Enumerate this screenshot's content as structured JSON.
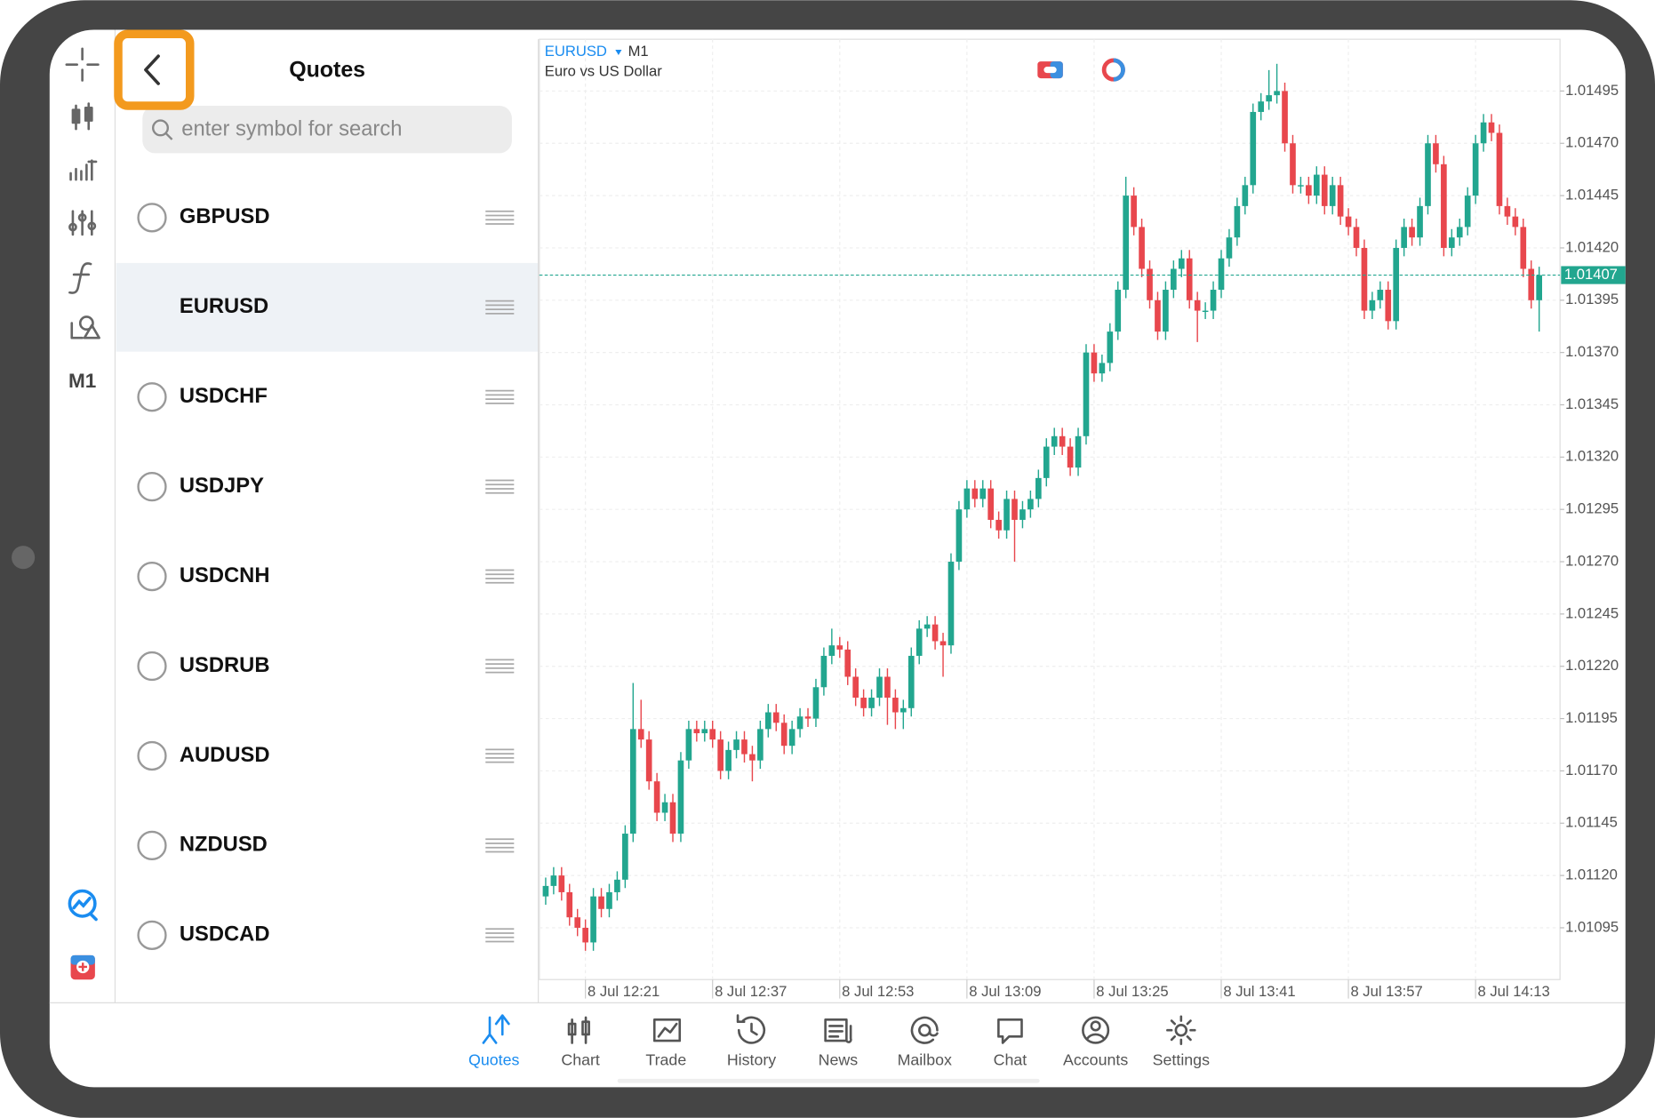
{
  "sidebar": {
    "timeframe": "M1"
  },
  "quotes": {
    "title": "Quotes",
    "search_placeholder": "enter symbol for search",
    "symbols": [
      {
        "name": "GBPUSD",
        "selected": false
      },
      {
        "name": "EURUSD",
        "selected": true
      },
      {
        "name": "USDCHF",
        "selected": false
      },
      {
        "name": "USDJPY",
        "selected": false
      },
      {
        "name": "USDCNH",
        "selected": false
      },
      {
        "name": "USDRUB",
        "selected": false
      },
      {
        "name": "AUDUSD",
        "selected": false
      },
      {
        "name": "NZDUSD",
        "selected": false
      },
      {
        "name": "USDCAD",
        "selected": false
      }
    ]
  },
  "chart": {
    "type": "candlestick",
    "symbol": "EURUSD",
    "timeframe": "M1",
    "description": "Euro vs US Dollar",
    "up_color": "#22a68f",
    "down_color": "#e8474d",
    "grid": true,
    "ylim": [
      1.0107,
      1.0152
    ],
    "yticks": [
      1.01095,
      {
        "value": 1.0112,
        "label": "1.01120"
      },
      1.01145,
      {
        "value": 1.0117,
        "label": "1.01170"
      },
      1.01195,
      {
        "value": 1.0122,
        "label": "1.01220"
      },
      1.01245,
      {
        "value": 1.0127,
        "label": "1.01270"
      },
      1.01295,
      {
        "value": 1.0132,
        "label": "1.01320"
      },
      1.01345,
      {
        "value": 1.0137,
        "label": "1.01370"
      },
      1.01395,
      {
        "value": 1.0142,
        "label": "1.01420"
      },
      1.01445,
      {
        "value": 1.0147,
        "label": "1.01470"
      },
      1.01495
    ],
    "xticks": [
      {
        "value": 5,
        "label": "8 Jul 12:21"
      },
      {
        "value": 21,
        "label": "8 Jul 12:37"
      },
      {
        "value": 37,
        "label": "8 Jul 12:53"
      },
      {
        "value": 53,
        "label": "8 Jul 13:09"
      },
      {
        "value": 69,
        "label": "8 Jul 13:25"
      },
      {
        "value": 85,
        "label": "8 Jul 13:41"
      },
      {
        "value": 101,
        "label": "8 Jul 13:57"
      },
      {
        "value": 117,
        "label": "8 Jul 14:13"
      }
    ],
    "ohlc": [
      [
        1.0111,
        1.01119,
        1.01106,
        1.01115
      ],
      [
        1.01115,
        1.01124,
        1.01111,
        1.0112
      ],
      [
        1.0112,
        1.01124,
        1.01108,
        1.01112
      ],
      [
        1.01112,
        1.01116,
        1.01096,
        1.011
      ],
      [
        1.011,
        1.01104,
        1.01091,
        1.01095
      ],
      [
        1.01095,
        1.01099,
        1.01084,
        1.01088
      ],
      [
        1.01088,
        1.01114,
        1.01084,
        1.0111
      ],
      [
        1.0111,
        1.01114,
        1.011,
        1.01104
      ],
      [
        1.01104,
        1.01116,
        1.011,
        1.01112
      ],
      [
        1.01112,
        1.01122,
        1.01108,
        1.01118
      ],
      [
        1.01118,
        1.01144,
        1.01114,
        1.0114
      ],
      [
        1.0114,
        1.01212,
        1.01136,
        1.0119
      ],
      [
        1.0119,
        1.01204,
        1.01181,
        1.01185
      ],
      [
        1.01185,
        1.01189,
        1.01161,
        1.01165
      ],
      [
        1.01165,
        1.01169,
        1.01146,
        1.0115
      ],
      [
        1.0115,
        1.01159,
        1.01146,
        1.01155
      ],
      [
        1.01155,
        1.01159,
        1.01136,
        1.0114
      ],
      [
        1.0114,
        1.01179,
        1.01136,
        1.01175
      ],
      [
        1.01175,
        1.01194,
        1.01171,
        1.0119
      ],
      [
        1.0119,
        1.01194,
        1.01184,
        1.01188
      ],
      [
        1.01188,
        1.01194,
        1.01184,
        1.0119
      ],
      [
        1.0119,
        1.01194,
        1.01181,
        1.01185
      ],
      [
        1.01185,
        1.01189,
        1.01166,
        1.0117
      ],
      [
        1.0117,
        1.01184,
        1.01166,
        1.0118
      ],
      [
        1.0118,
        1.01189,
        1.01176,
        1.01185
      ],
      [
        1.01185,
        1.01189,
        1.01174,
        1.01178
      ],
      [
        1.01178,
        1.01182,
        1.01165,
        1.01175
      ],
      [
        1.01175,
        1.01194,
        1.01171,
        1.0119
      ],
      [
        1.0119,
        1.01202,
        1.01186,
        1.01198
      ],
      [
        1.01198,
        1.01202,
        1.01189,
        1.01193
      ],
      [
        1.01193,
        1.01197,
        1.01178,
        1.01182
      ],
      [
        1.01182,
        1.01194,
        1.01178,
        1.0119
      ],
      [
        1.0119,
        1.012,
        1.01186,
        1.01196
      ],
      [
        1.01196,
        1.012,
        1.01191,
        1.01195
      ],
      [
        1.01195,
        1.01214,
        1.01191,
        1.0121
      ],
      [
        1.0121,
        1.01229,
        1.01206,
        1.01225
      ],
      [
        1.01225,
        1.01238,
        1.01221,
        1.0123
      ],
      [
        1.0123,
        1.01234,
        1.01224,
        1.01228
      ],
      [
        1.01228,
        1.01232,
        1.01211,
        1.01215
      ],
      [
        1.01215,
        1.01219,
        1.01201,
        1.01205
      ],
      [
        1.01205,
        1.01209,
        1.01196,
        1.012
      ],
      [
        1.012,
        1.01209,
        1.01196,
        1.01205
      ],
      [
        1.01205,
        1.01219,
        1.01201,
        1.01215
      ],
      [
        1.01215,
        1.01219,
        1.01192,
        1.01205
      ],
      [
        1.01205,
        1.01209,
        1.0119,
        1.01198
      ],
      [
        1.01198,
        1.01204,
        1.0119,
        1.012
      ],
      [
        1.012,
        1.01229,
        1.01196,
        1.01225
      ],
      [
        1.01225,
        1.01242,
        1.01221,
        1.01238
      ],
      [
        1.01238,
        1.01244,
        1.01234,
        1.0124
      ],
      [
        1.0124,
        1.01244,
        1.01228,
        1.01232
      ],
      [
        1.01232,
        1.01236,
        1.01215,
        1.0123
      ],
      [
        1.0123,
        1.01274,
        1.01226,
        1.0127
      ],
      [
        1.0127,
        1.01299,
        1.01266,
        1.01295
      ],
      [
        1.01295,
        1.01309,
        1.01291,
        1.01305
      ],
      [
        1.01305,
        1.01309,
        1.01296,
        1.013
      ],
      [
        1.013,
        1.01309,
        1.01296,
        1.01305
      ],
      [
        1.01305,
        1.01309,
        1.01286,
        1.0129
      ],
      [
        1.0129,
        1.01294,
        1.01281,
        1.01285
      ],
      [
        1.01285,
        1.01304,
        1.01281,
        1.013
      ],
      [
        1.013,
        1.01304,
        1.0127,
        1.0129
      ],
      [
        1.0129,
        1.01299,
        1.01286,
        1.01295
      ],
      [
        1.01295,
        1.01304,
        1.01291,
        1.013
      ],
      [
        1.013,
        1.01314,
        1.01296,
        1.0131
      ],
      [
        1.0131,
        1.01329,
        1.01306,
        1.01325
      ],
      [
        1.01325,
        1.01334,
        1.01321,
        1.0133
      ],
      [
        1.0133,
        1.01334,
        1.01321,
        1.01325
      ],
      [
        1.01325,
        1.01329,
        1.01311,
        1.01315
      ],
      [
        1.01315,
        1.01334,
        1.01311,
        1.0133
      ],
      [
        1.0133,
        1.01374,
        1.01326,
        1.0137
      ],
      [
        1.0137,
        1.01374,
        1.01356,
        1.0136
      ],
      [
        1.0136,
        1.01369,
        1.01356,
        1.01365
      ],
      [
        1.01365,
        1.01384,
        1.01361,
        1.0138
      ],
      [
        1.0138,
        1.01404,
        1.01376,
        1.014
      ],
      [
        1.014,
        1.01454,
        1.01396,
        1.01445
      ],
      [
        1.01445,
        1.01449,
        1.01426,
        1.0143
      ],
      [
        1.0143,
        1.01434,
        1.01406,
        1.0141
      ],
      [
        1.0141,
        1.01414,
        1.01391,
        1.01395
      ],
      [
        1.01395,
        1.01399,
        1.01376,
        1.0138
      ],
      [
        1.0138,
        1.01404,
        1.01376,
        1.014
      ],
      [
        1.014,
        1.01414,
        1.01396,
        1.0141
      ],
      [
        1.0141,
        1.01419,
        1.01406,
        1.01415
      ],
      [
        1.01415,
        1.01419,
        1.01391,
        1.01395
      ],
      [
        1.01395,
        1.01399,
        1.01375,
        1.0139
      ],
      [
        1.0139,
        1.01394,
        1.01386,
        1.0139
      ],
      [
        1.0139,
        1.01404,
        1.01386,
        1.014
      ],
      [
        1.014,
        1.01419,
        1.01396,
        1.01415
      ],
      [
        1.01415,
        1.01429,
        1.01411,
        1.01425
      ],
      [
        1.01425,
        1.01444,
        1.01421,
        1.0144
      ],
      [
        1.0144,
        1.01454,
        1.01436,
        1.0145
      ],
      [
        1.0145,
        1.01489,
        1.01446,
        1.01485
      ],
      [
        1.01485,
        1.01494,
        1.01481,
        1.0149
      ],
      [
        1.0149,
        1.01505,
        1.01486,
        1.01493
      ],
      [
        1.01493,
        1.01508,
        1.01489,
        1.01495
      ],
      [
        1.01495,
        1.01499,
        1.01466,
        1.0147
      ],
      [
        1.0147,
        1.01474,
        1.01446,
        1.0145
      ],
      [
        1.0145,
        1.01454,
        1.01446,
        1.0145
      ],
      [
        1.0145,
        1.01454,
        1.01441,
        1.01445
      ],
      [
        1.01445,
        1.01459,
        1.01441,
        1.01455
      ],
      [
        1.01455,
        1.01459,
        1.01436,
        1.0144
      ],
      [
        1.0144,
        1.01454,
        1.01436,
        1.0145
      ],
      [
        1.0145,
        1.01454,
        1.01431,
        1.01435
      ],
      [
        1.01435,
        1.01439,
        1.01426,
        1.0143
      ],
      [
        1.0143,
        1.01434,
        1.01416,
        1.0142
      ],
      [
        1.0142,
        1.01424,
        1.01386,
        1.0139
      ],
      [
        1.0139,
        1.01399,
        1.01386,
        1.01395
      ],
      [
        1.01395,
        1.01404,
        1.01391,
        1.014
      ],
      [
        1.014,
        1.01404,
        1.01381,
        1.01385
      ],
      [
        1.01385,
        1.01424,
        1.01381,
        1.0142
      ],
      [
        1.0142,
        1.01434,
        1.01416,
        1.0143
      ],
      [
        1.0143,
        1.01434,
        1.01421,
        1.01425
      ],
      [
        1.01425,
        1.01444,
        1.01421,
        1.0144
      ],
      [
        1.0144,
        1.01474,
        1.01436,
        1.0147
      ],
      [
        1.0147,
        1.01474,
        1.01456,
        1.0146
      ],
      [
        1.0146,
        1.01464,
        1.01416,
        1.0142
      ],
      [
        1.0142,
        1.01429,
        1.01416,
        1.01425
      ],
      [
        1.01425,
        1.01434,
        1.01421,
        1.0143
      ],
      [
        1.0143,
        1.01449,
        1.01426,
        1.01445
      ],
      [
        1.01445,
        1.01474,
        1.01441,
        1.0147
      ],
      [
        1.0147,
        1.01484,
        1.01466,
        1.0148
      ],
      [
        1.0148,
        1.01484,
        1.01471,
        1.01475
      ],
      [
        1.01475,
        1.01479,
        1.01436,
        1.0144
      ],
      [
        1.0144,
        1.01444,
        1.01431,
        1.01435
      ],
      [
        1.01435,
        1.01439,
        1.01426,
        1.0143
      ],
      [
        1.0143,
        1.01434,
        1.01406,
        1.0141
      ],
      [
        1.0141,
        1.01414,
        1.01391,
        1.01395
      ],
      [
        1.01395,
        1.01411,
        1.0138,
        1.01407
      ]
    ]
  },
  "nav": {
    "tabs": [
      "Quotes",
      "Chart",
      "Trade",
      "History",
      "News",
      "Mailbox",
      "Chat",
      "Accounts",
      "Settings"
    ],
    "active": 0
  }
}
